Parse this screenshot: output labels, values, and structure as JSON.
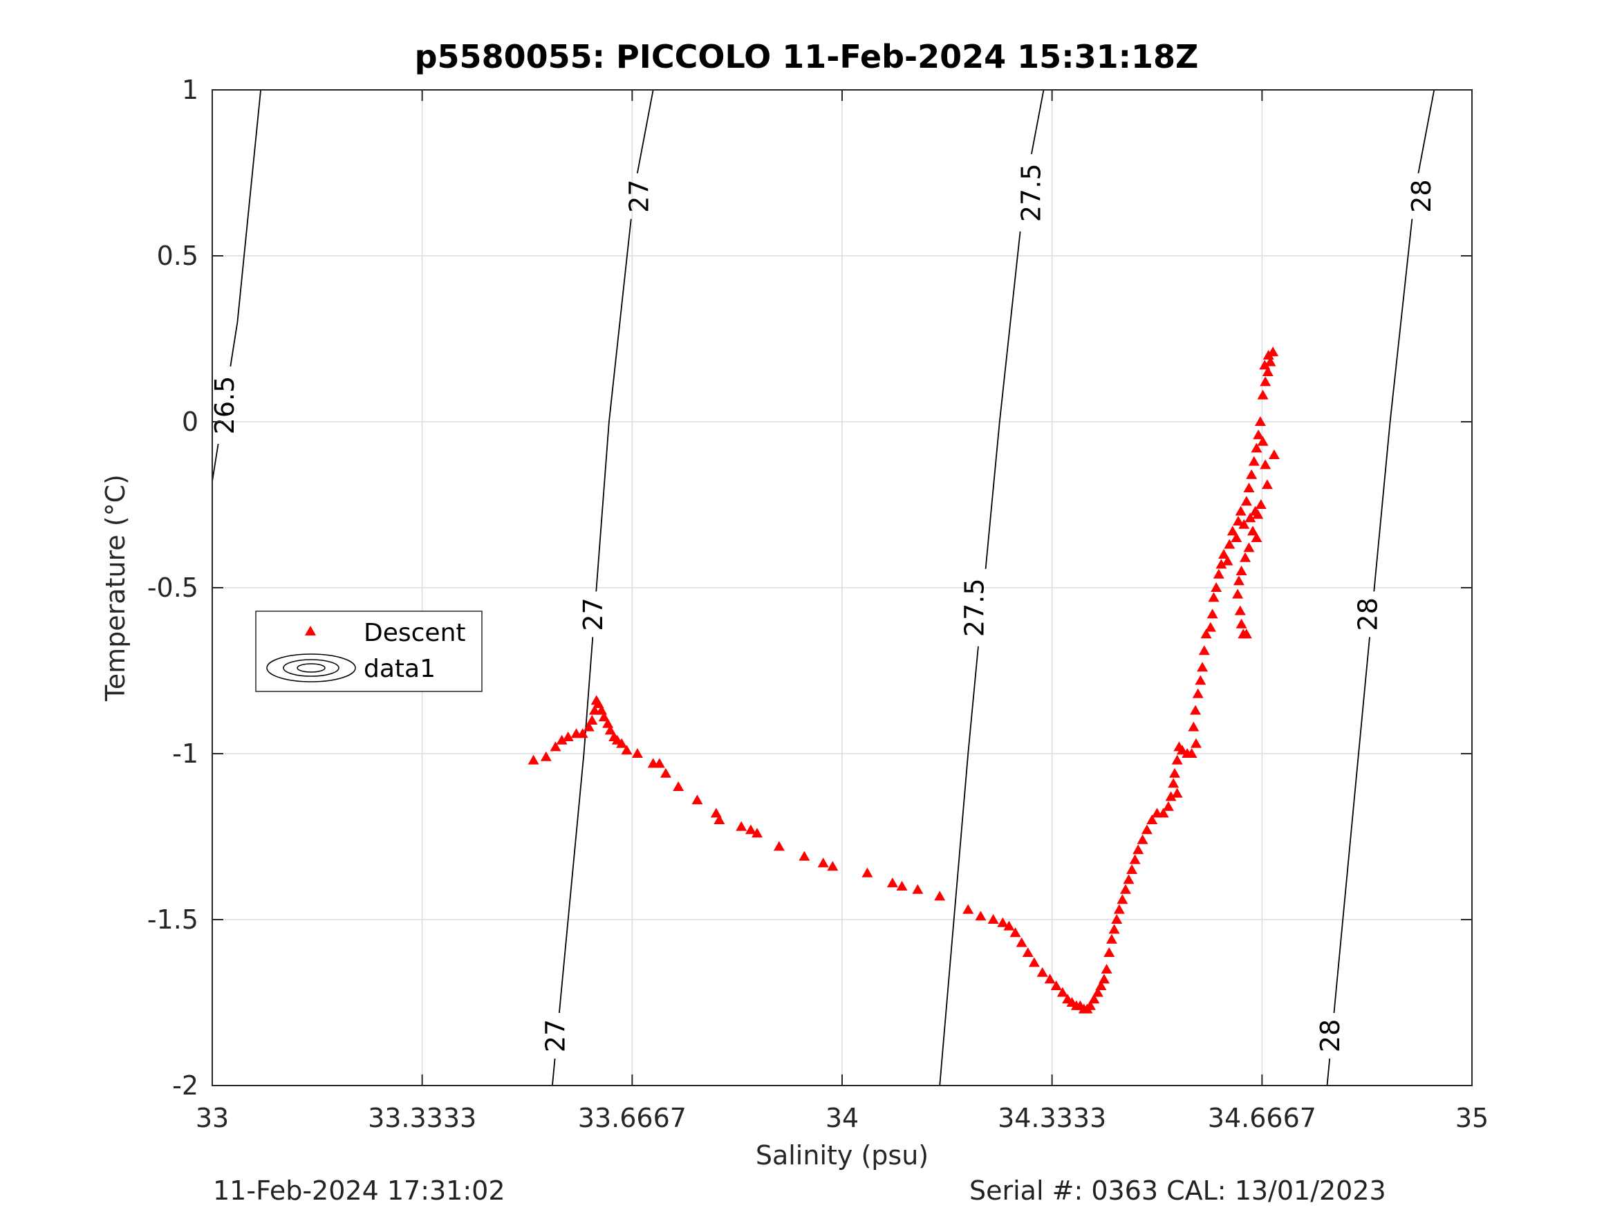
{
  "title": "p5580055: PICCOLO 11-Feb-2024 15:31:18Z",
  "footer": {
    "left": "11-Feb-2024 17:31:02",
    "right": "Serial #: 0363  CAL: 13/01/2023"
  },
  "colors": {
    "descent": "#ff0000",
    "contour": "#000000",
    "grid": "#dcdcdc",
    "axis": "#262626"
  },
  "chart_data": {
    "type": "scatter",
    "title": "p5580055: PICCOLO 11-Feb-2024 15:31:18Z",
    "xlabel": "Salinity (psu)",
    "ylabel": "Temperature (°C)",
    "xlim": [
      33,
      35
    ],
    "ylim": [
      -2,
      1
    ],
    "grid": true,
    "x_ticks": [
      "33",
      "33.3333",
      "33.6667",
      "34",
      "34.3333",
      "34.6667",
      "35"
    ],
    "x_tick_values": [
      33,
      33.3333,
      33.6667,
      34,
      34.3333,
      34.6667,
      35
    ],
    "y_ticks": [
      "-2",
      "-1.5",
      "-1",
      "-0.5",
      "0",
      "0.5",
      "1"
    ],
    "y_tick_values": [
      -2,
      -1.5,
      -1,
      -0.5,
      0,
      0.5,
      1
    ],
    "legend": {
      "placement": "left",
      "entries": [
        "Descent",
        "data1"
      ]
    },
    "contours": [
      {
        "level": "26.5",
        "points": [
          [
            33.0,
            -0.18
          ],
          [
            33.04,
            0.3
          ],
          [
            33.077,
            1.0
          ]
        ],
        "labels": [
          {
            "x": 33.02,
            "y": 0.05,
            "text": "26.5"
          }
        ]
      },
      {
        "level": "27",
        "points": [
          [
            33.54,
            -2.0
          ],
          [
            33.59,
            -1.0
          ],
          [
            33.63,
            0.0
          ],
          [
            33.67,
            0.7
          ],
          [
            33.7,
            1.0
          ]
        ],
        "labels": [
          {
            "x": 33.545,
            "y": -1.85,
            "text": "27"
          },
          {
            "x": 33.605,
            "y": -0.58,
            "text": "27"
          },
          {
            "x": 33.678,
            "y": 0.68,
            "text": "27"
          }
        ]
      },
      {
        "level": "27.5",
        "points": [
          [
            34.155,
            -2.0
          ],
          [
            34.2,
            -1.0
          ],
          [
            34.25,
            0.0
          ],
          [
            34.29,
            0.7
          ],
          [
            34.32,
            1.0
          ]
        ],
        "labels": [
          {
            "x": 34.21,
            "y": -0.56,
            "text": "27.5"
          },
          {
            "x": 34.3,
            "y": 0.69,
            "text": "27.5"
          }
        ]
      },
      {
        "level": "28",
        "points": [
          [
            34.77,
            -2.0
          ],
          [
            34.82,
            -1.0
          ],
          [
            34.87,
            0.0
          ],
          [
            34.91,
            0.7
          ],
          [
            34.94,
            1.0
          ]
        ],
        "labels": [
          {
            "x": 34.775,
            "y": -1.85,
            "text": "28"
          },
          {
            "x": 34.835,
            "y": -0.58,
            "text": "28"
          },
          {
            "x": 34.92,
            "y": 0.68,
            "text": "28"
          }
        ]
      }
    ],
    "series": [
      {
        "name": "Descent",
        "marker": "triangle",
        "points": [
          [
            33.51,
            -1.02
          ],
          [
            33.53,
            -1.01
          ],
          [
            33.545,
            -0.98
          ],
          [
            33.555,
            -0.96
          ],
          [
            33.565,
            -0.95
          ],
          [
            33.578,
            -0.94
          ],
          [
            33.588,
            -0.94
          ],
          [
            33.598,
            -0.92
          ],
          [
            33.603,
            -0.9
          ],
          [
            33.607,
            -0.87
          ],
          [
            33.61,
            -0.84
          ],
          [
            33.613,
            -0.85
          ],
          [
            33.618,
            -0.87
          ],
          [
            33.622,
            -0.89
          ],
          [
            33.628,
            -0.91
          ],
          [
            33.632,
            -0.93
          ],
          [
            33.638,
            -0.95
          ],
          [
            33.643,
            -0.96
          ],
          [
            33.65,
            -0.97
          ],
          [
            33.658,
            -0.99
          ],
          [
            33.675,
            -1.0
          ],
          [
            33.7,
            -1.03
          ],
          [
            33.71,
            -1.03
          ],
          [
            33.72,
            -1.06
          ],
          [
            33.74,
            -1.1
          ],
          [
            33.77,
            -1.14
          ],
          [
            33.8,
            -1.18
          ],
          [
            33.805,
            -1.2
          ],
          [
            33.84,
            -1.22
          ],
          [
            33.855,
            -1.23
          ],
          [
            33.865,
            -1.24
          ],
          [
            33.9,
            -1.28
          ],
          [
            33.94,
            -1.31
          ],
          [
            33.97,
            -1.33
          ],
          [
            33.985,
            -1.34
          ],
          [
            34.04,
            -1.36
          ],
          [
            34.08,
            -1.39
          ],
          [
            34.095,
            -1.4
          ],
          [
            34.12,
            -1.41
          ],
          [
            34.155,
            -1.43
          ],
          [
            34.2,
            -1.47
          ],
          [
            34.22,
            -1.49
          ],
          [
            34.24,
            -1.5
          ],
          [
            34.255,
            -1.51
          ],
          [
            34.265,
            -1.52
          ],
          [
            34.275,
            -1.54
          ],
          [
            34.285,
            -1.57
          ],
          [
            34.295,
            -1.6
          ],
          [
            34.305,
            -1.63
          ],
          [
            34.318,
            -1.66
          ],
          [
            34.33,
            -1.68
          ],
          [
            34.34,
            -1.7
          ],
          [
            34.35,
            -1.72
          ],
          [
            34.358,
            -1.74
          ],
          [
            34.365,
            -1.75
          ],
          [
            34.372,
            -1.76
          ],
          [
            34.378,
            -1.76
          ],
          [
            34.384,
            -1.77
          ],
          [
            34.389,
            -1.77
          ],
          [
            34.394,
            -1.76
          ],
          [
            34.4,
            -1.74
          ],
          [
            34.406,
            -1.72
          ],
          [
            34.411,
            -1.7
          ],
          [
            34.416,
            -1.68
          ],
          [
            34.42,
            -1.65
          ],
          [
            34.424,
            -1.6
          ],
          [
            34.428,
            -1.56
          ],
          [
            34.432,
            -1.53
          ],
          [
            34.436,
            -1.5
          ],
          [
            34.44,
            -1.47
          ],
          [
            34.445,
            -1.44
          ],
          [
            34.45,
            -1.41
          ],
          [
            34.455,
            -1.38
          ],
          [
            34.46,
            -1.35
          ],
          [
            34.465,
            -1.32
          ],
          [
            34.47,
            -1.29
          ],
          [
            34.477,
            -1.26
          ],
          [
            34.484,
            -1.23
          ],
          [
            34.492,
            -1.2
          ],
          [
            34.5,
            -1.18
          ],
          [
            34.51,
            -1.18
          ],
          [
            34.518,
            -1.16
          ],
          [
            34.522,
            -1.13
          ],
          [
            34.526,
            -1.09
          ],
          [
            34.532,
            -1.12
          ],
          [
            34.528,
            -1.06
          ],
          [
            34.532,
            -1.02
          ],
          [
            34.535,
            -0.98
          ],
          [
            34.54,
            -0.99
          ],
          [
            34.548,
            -1.0
          ],
          [
            34.555,
            -1.0
          ],
          [
            34.562,
            -0.97
          ],
          [
            34.558,
            -0.92
          ],
          [
            34.561,
            -0.87
          ],
          [
            34.565,
            -0.82
          ],
          [
            34.569,
            -0.78
          ],
          [
            34.572,
            -0.74
          ],
          [
            34.575,
            -0.69
          ],
          [
            34.578,
            -0.64
          ],
          [
            34.585,
            -0.62
          ],
          [
            34.588,
            -0.58
          ],
          [
            34.59,
            -0.53
          ],
          [
            34.594,
            -0.5
          ],
          [
            34.598,
            -0.46
          ],
          [
            34.602,
            -0.43
          ],
          [
            34.606,
            -0.4
          ],
          [
            34.612,
            -0.42
          ],
          [
            34.615,
            -0.37
          ],
          [
            34.62,
            -0.33
          ],
          [
            34.626,
            -0.35
          ],
          [
            34.629,
            -0.3
          ],
          [
            34.633,
            -0.27
          ],
          [
            34.638,
            -0.31
          ],
          [
            34.642,
            -0.24
          ],
          [
            34.646,
            -0.2
          ],
          [
            34.65,
            -0.16
          ],
          [
            34.654,
            -0.12
          ],
          [
            34.658,
            -0.08
          ],
          [
            34.661,
            -0.04
          ],
          [
            34.664,
            0.0
          ],
          [
            34.668,
            -0.06
          ],
          [
            34.672,
            -0.13
          ],
          [
            34.675,
            -0.19
          ],
          [
            34.665,
            -0.25
          ],
          [
            34.656,
            -0.27
          ],
          [
            34.652,
            -0.33
          ],
          [
            34.646,
            -0.38
          ],
          [
            34.64,
            -0.41
          ],
          [
            34.634,
            -0.45
          ],
          [
            34.63,
            -0.48
          ],
          [
            34.628,
            -0.52
          ],
          [
            34.632,
            -0.57
          ],
          [
            34.634,
            -0.61
          ],
          [
            34.637,
            -0.64
          ],
          [
            34.642,
            -0.64
          ],
          [
            34.66,
            -0.28
          ],
          [
            34.668,
            0.08
          ],
          [
            34.672,
            0.12
          ],
          [
            34.676,
            0.15
          ],
          [
            34.68,
            0.18
          ],
          [
            34.684,
            0.21
          ],
          [
            34.677,
            0.2
          ],
          [
            34.671,
            0.17
          ],
          [
            34.686,
            -0.1
          ],
          [
            34.658,
            -0.35
          ],
          [
            34.648,
            -0.29
          ]
        ]
      }
    ]
  }
}
